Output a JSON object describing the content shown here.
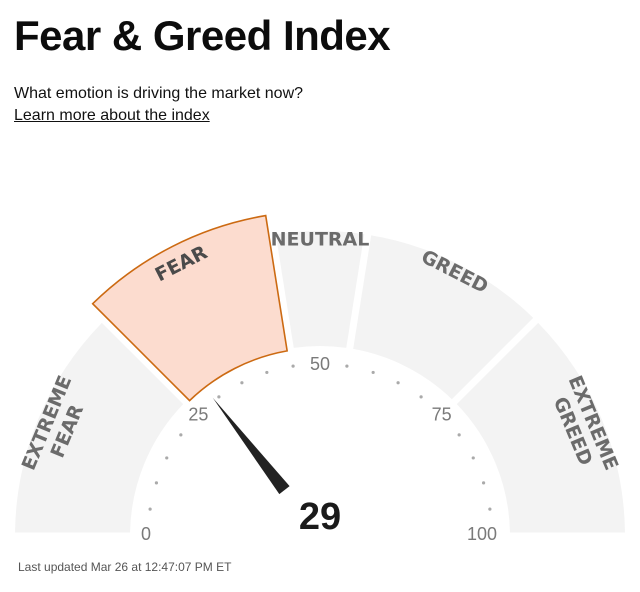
{
  "header": {
    "title": "Fear & Greed Index",
    "subtitle": "What emotion is driving the market now?",
    "learn_more_link": "Learn more about the index"
  },
  "gauge": {
    "value": 29,
    "value_label": "29",
    "active_segment": "fear",
    "segments": [
      {
        "id": "extreme-fear",
        "label_lines": [
          "EXTREME",
          "FEAR"
        ],
        "min": 0,
        "max": 25
      },
      {
        "id": "fear",
        "label_lines": [
          "FEAR"
        ],
        "min": 25,
        "max": 45
      },
      {
        "id": "neutral",
        "label_lines": [
          "NEUTRAL"
        ],
        "min": 45,
        "max": 55
      },
      {
        "id": "greed",
        "label_lines": [
          "GREED"
        ],
        "min": 55,
        "max": 75
      },
      {
        "id": "extreme-greed",
        "label_lines": [
          "EXTREME",
          "GREED"
        ],
        "min": 75,
        "max": 100
      }
    ],
    "scale_labels": [
      {
        "value": 0,
        "text": "0"
      },
      {
        "value": 25,
        "text": "25"
      },
      {
        "value": 50,
        "text": "50"
      },
      {
        "value": 75,
        "text": "75"
      },
      {
        "value": 100,
        "text": "100"
      }
    ],
    "colors": {
      "segment_fill": "#f3f3f3",
      "active_fill": "#fcdccf",
      "active_stroke": "#cc6a12",
      "label": "#6b6b6b",
      "needle": "#222222",
      "dots": "#aaaaaa"
    }
  },
  "footer": {
    "last_updated": "Last updated Mar 26 at 12:47:07 PM ET"
  }
}
